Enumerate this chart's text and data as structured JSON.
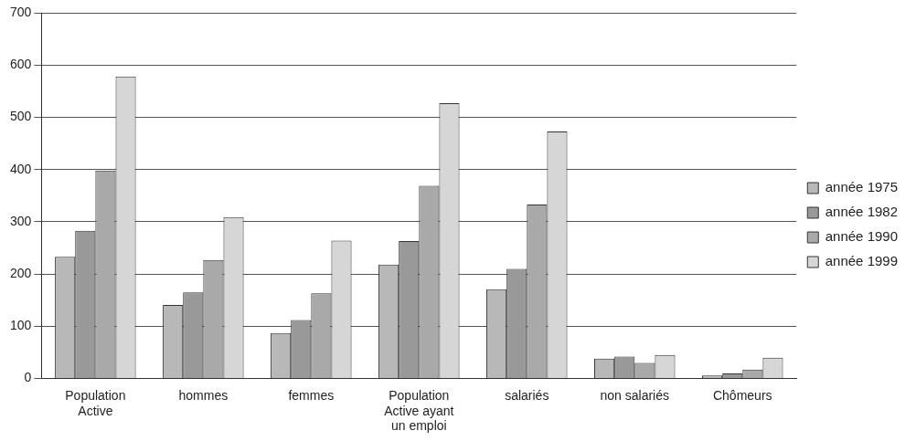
{
  "chart_data": {
    "type": "bar",
    "categories": [
      "Population Active",
      "hommes",
      "femmes",
      "Population Active ayant un emploi",
      "salariés",
      "non salariés",
      "Chômeurs"
    ],
    "series": [
      {
        "name": "année 1975",
        "color": "#b8b8b8",
        "values": [
          233,
          141,
          87,
          218,
          171,
          38,
          6
        ]
      },
      {
        "name": "année 1982",
        "color": "#999999",
        "values": [
          283,
          165,
          112,
          263,
          210,
          42,
          10
        ]
      },
      {
        "name": "année 1990",
        "color": "#a9a9a9",
        "values": [
          398,
          227,
          163,
          369,
          333,
          30,
          17
        ]
      },
      {
        "name": "année 1999",
        "color": "#d6d6d6",
        "values": [
          578,
          309,
          264,
          527,
          473,
          45,
          40
        ]
      }
    ],
    "ylim": [
      0,
      700
    ],
    "yticks": [
      0,
      100,
      200,
      300,
      400,
      500,
      600,
      700
    ],
    "grid": "y",
    "legend": "right"
  }
}
